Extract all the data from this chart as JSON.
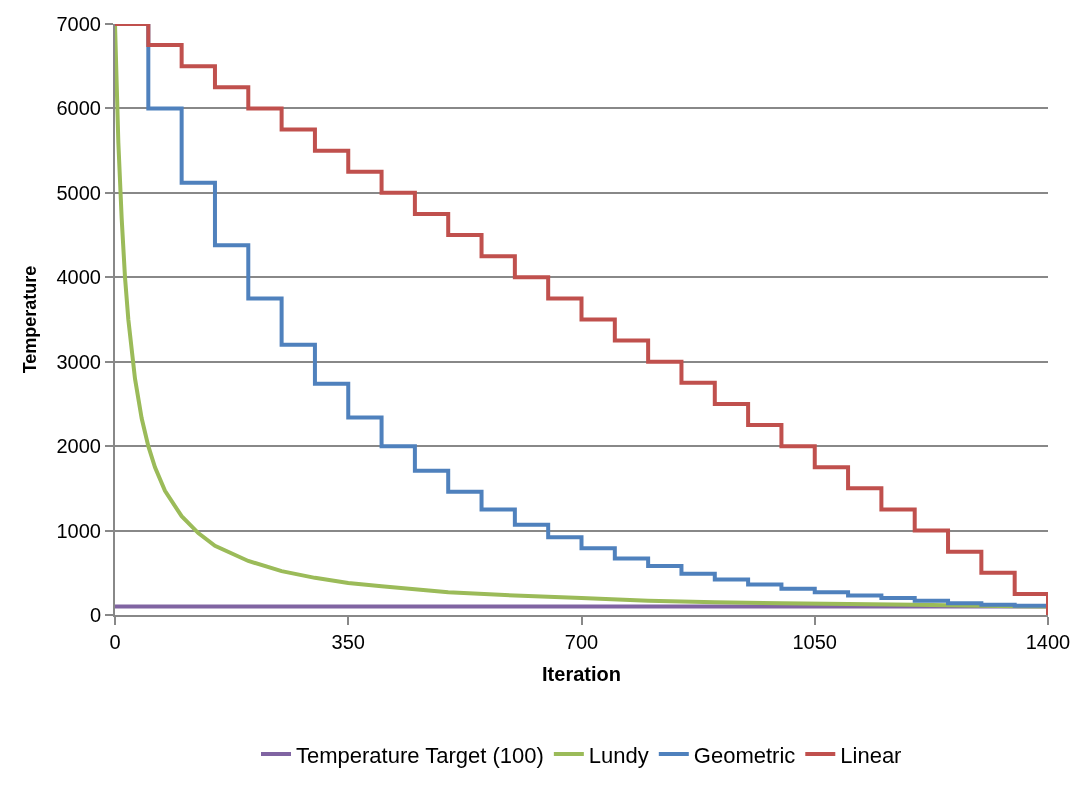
{
  "chart_data": {
    "type": "line",
    "xlabel": "Iteration",
    "ylabel": "Temperature",
    "xlim": [
      0,
      1400
    ],
    "xticks": [
      0,
      350,
      700,
      1050,
      1400
    ],
    "ylim": [
      0,
      7000
    ],
    "yticks": [
      0,
      1000,
      2000,
      3000,
      4000,
      5000,
      6000,
      7000
    ],
    "grid": "y",
    "legend": "bottom",
    "marker": "none",
    "line_style": "solid",
    "series": [
      {
        "name": "Temperature Target (100)",
        "color": "#8064a2",
        "x": [
          0,
          1400
        ],
        "values": [
          100,
          100
        ]
      },
      {
        "name": "Lundy",
        "color": "#9bbb59",
        "x": [
          0,
          5,
          10,
          15,
          20,
          30,
          40,
          50,
          60,
          75,
          100,
          125,
          150,
          200,
          250,
          300,
          350,
          400,
          500,
          600,
          700,
          800,
          900,
          1000,
          1100,
          1200,
          1300,
          1400
        ],
        "values": [
          7000,
          5600,
          4700,
          4000,
          3500,
          2800,
          2330,
          2000,
          1750,
          1470,
          1170,
          970,
          820,
          640,
          520,
          440,
          380,
          340,
          270,
          230,
          200,
          170,
          150,
          140,
          130,
          120,
          110,
          100
        ]
      },
      {
        "name": "Geometric",
        "color": "#4f81bd",
        "type": "step",
        "x": [
          0,
          50,
          100,
          150,
          200,
          250,
          300,
          350,
          400,
          450,
          500,
          550,
          600,
          650,
          700,
          750,
          800,
          850,
          900,
          950,
          1000,
          1050,
          1100,
          1150,
          1200,
          1250,
          1300,
          1350,
          1400
        ],
        "values": [
          7000,
          6000,
          5120,
          4380,
          3750,
          3200,
          2740,
          2340,
          2000,
          1710,
          1460,
          1250,
          1070,
          920,
          790,
          670,
          580,
          490,
          420,
          360,
          310,
          270,
          230,
          200,
          170,
          140,
          120,
          110,
          100
        ]
      },
      {
        "name": "Linear",
        "color": "#c0504d",
        "type": "step",
        "x": [
          0,
          50,
          100,
          150,
          200,
          250,
          300,
          350,
          400,
          450,
          500,
          550,
          600,
          650,
          700,
          750,
          800,
          850,
          900,
          950,
          1000,
          1050,
          1100,
          1150,
          1200,
          1250,
          1300,
          1350,
          1400
        ],
        "values": [
          7000,
          6750,
          6500,
          6250,
          6000,
          5750,
          5500,
          5250,
          5000,
          4750,
          4500,
          4250,
          4000,
          3750,
          3500,
          3250,
          3000,
          2750,
          2500,
          2250,
          2000,
          1750,
          1500,
          1250,
          1000,
          750,
          500,
          250,
          0
        ]
      }
    ]
  }
}
